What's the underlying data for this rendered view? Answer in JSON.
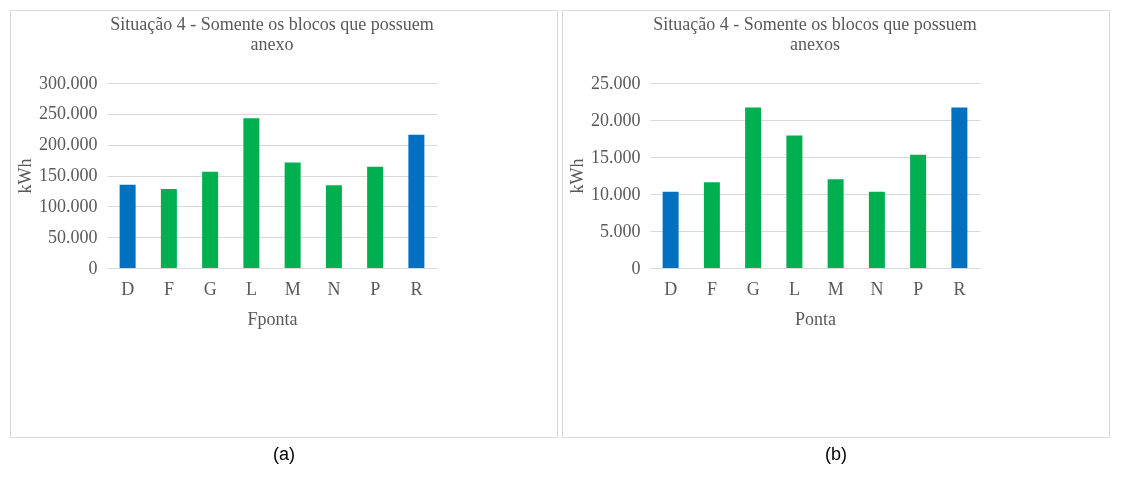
{
  "chart_data": [
    {
      "type": "bar",
      "title": "Situação 4 - Somente os blocos que possuem anexo",
      "xlabel": "Fponta",
      "ylabel": "kWh",
      "categories": [
        "D",
        "F",
        "G",
        "L",
        "M",
        "N",
        "P",
        "R"
      ],
      "values": [
        135000,
        128000,
        156000,
        243000,
        171000,
        134000,
        164000,
        216000
      ],
      "colors": [
        "#0070c0",
        "#00b050",
        "#00b050",
        "#00b050",
        "#00b050",
        "#00b050",
        "#00b050",
        "#0070c0"
      ],
      "ylim": [
        0,
        300000
      ],
      "yticks": [
        0,
        {
          "value": 50000,
          "label": "50.000"
        },
        {
          "value": 100000,
          "label": "100.000"
        },
        {
          "value": 150000,
          "label": "150.000"
        },
        {
          "value": 200000,
          "label": "200.000"
        },
        {
          "value": 250000,
          "label": "250.000"
        },
        {
          "value": 300000,
          "label": "300.000"
        }
      ],
      "grid": "y",
      "annotations": [
        "(a)"
      ]
    },
    {
      "type": "bar",
      "title": "Situação 4 - Somente os blocos que possuem anexos",
      "xlabel": "Ponta",
      "ylabel": "kWh",
      "categories": [
        "D",
        "F",
        "G",
        "L",
        "M",
        "N",
        "P",
        "R"
      ],
      "values": [
        10300,
        11600,
        21700,
        17900,
        12000,
        10300,
        15300,
        21700
      ],
      "colors": [
        "#0070c0",
        "#00b050",
        "#00b050",
        "#00b050",
        "#00b050",
        "#00b050",
        "#00b050",
        "#0070c0"
      ],
      "ylim": [
        0,
        25000
      ],
      "yticks": [
        0,
        {
          "value": 5000,
          "label": "5.000"
        },
        {
          "value": 10000,
          "label": "10.000"
        },
        {
          "value": 15000,
          "label": "15.000"
        },
        {
          "value": 20000,
          "label": "20.000"
        },
        {
          "value": 25000,
          "label": "25.000"
        }
      ],
      "grid": "y",
      "annotations": [
        "(b)"
      ]
    }
  ]
}
